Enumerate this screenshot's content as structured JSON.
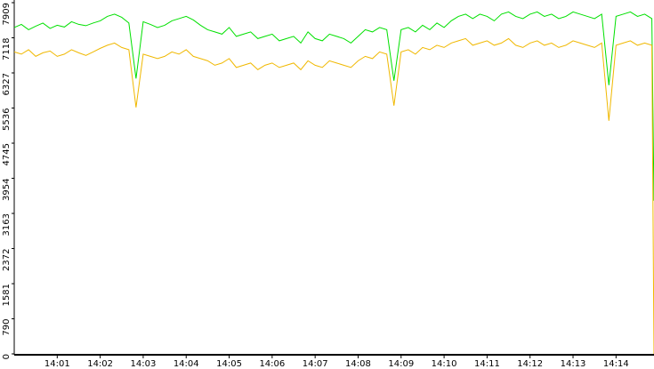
{
  "chart_data": {
    "type": "line",
    "x": [
      0,
      10,
      20,
      30,
      40,
      50,
      60,
      70,
      80,
      90,
      100,
      110,
      120,
      130,
      140,
      150,
      160,
      170,
      180,
      190,
      200,
      210,
      220,
      230,
      240,
      250,
      260,
      270,
      280,
      290,
      300,
      310,
      320,
      330,
      340,
      350,
      360,
      370,
      380,
      390,
      400,
      410,
      420,
      430,
      440,
      450,
      460,
      470,
      480,
      490,
      500,
      510,
      520,
      530,
      540,
      550,
      560,
      570,
      580,
      590,
      600,
      610,
      620,
      630,
      640,
      650,
      660,
      670,
      680,
      690,
      700,
      710,
      720,
      730,
      740,
      750,
      760,
      770,
      780,
      790,
      800,
      810,
      820,
      830,
      840,
      850,
      860,
      870,
      880,
      890,
      893
    ],
    "xlim": [
      0,
      893
    ],
    "xticks": [
      {
        "value": 60,
        "label": "14:01"
      },
      {
        "value": 120,
        "label": "14:02"
      },
      {
        "value": 180,
        "label": "14:03"
      },
      {
        "value": 240,
        "label": "14:04"
      },
      {
        "value": 300,
        "label": "14:05"
      },
      {
        "value": 360,
        "label": "14:06"
      },
      {
        "value": 420,
        "label": "14:07"
      },
      {
        "value": 480,
        "label": "14:08"
      },
      {
        "value": 540,
        "label": "14:09"
      },
      {
        "value": 600,
        "label": "14:10"
      },
      {
        "value": 660,
        "label": "14:11"
      },
      {
        "value": 720,
        "label": "14:12"
      },
      {
        "value": 780,
        "label": "14:13"
      },
      {
        "value": 840,
        "label": "14:14"
      }
    ],
    "ylim": [
      0,
      7909
    ],
    "yticks": [
      0,
      790,
      1581,
      2372,
      3163,
      3954,
      4745,
      5536,
      6327,
      7118,
      7909
    ],
    "series": [
      {
        "color": "#00e000",
        "values": [
          7350,
          7420,
          7300,
          7380,
          7450,
          7330,
          7400,
          7360,
          7480,
          7420,
          7390,
          7450,
          7500,
          7600,
          7650,
          7580,
          7450,
          6200,
          7480,
          7420,
          7350,
          7400,
          7500,
          7550,
          7600,
          7520,
          7400,
          7300,
          7250,
          7200,
          7350,
          7150,
          7200,
          7250,
          7100,
          7150,
          7200,
          7050,
          7100,
          7150,
          7000,
          7250,
          7100,
          7050,
          7200,
          7150,
          7100,
          7000,
          7150,
          7300,
          7250,
          7350,
          7300,
          6150,
          7300,
          7350,
          7250,
          7400,
          7300,
          7450,
          7350,
          7500,
          7600,
          7650,
          7550,
          7650,
          7600,
          7500,
          7650,
          7700,
          7600,
          7550,
          7650,
          7700,
          7600,
          7650,
          7550,
          7600,
          7700,
          7650,
          7600,
          7550,
          7650,
          6050,
          7600,
          7650,
          7700,
          7600,
          7650,
          7550,
          3450
        ]
      },
      {
        "color": "#f0b800",
        "values": [
          6800,
          6750,
          6850,
          6700,
          6780,
          6820,
          6700,
          6750,
          6850,
          6780,
          6720,
          6800,
          6880,
          6950,
          7000,
          6900,
          6850,
          5550,
          6750,
          6700,
          6650,
          6700,
          6800,
          6750,
          6850,
          6700,
          6650,
          6600,
          6500,
          6550,
          6650,
          6450,
          6500,
          6550,
          6400,
          6500,
          6550,
          6450,
          6500,
          6550,
          6400,
          6600,
          6500,
          6450,
          6600,
          6550,
          6500,
          6450,
          6600,
          6700,
          6650,
          6800,
          6750,
          5590,
          6800,
          6850,
          6750,
          6900,
          6850,
          6950,
          6900,
          7000,
          7050,
          7100,
          6950,
          7000,
          7050,
          6950,
          7000,
          7100,
          6950,
          6900,
          7000,
          7050,
          6950,
          7000,
          6900,
          6950,
          7050,
          7000,
          6950,
          6900,
          7000,
          5250,
          6950,
          7000,
          7050,
          6950,
          7000,
          6950,
          0
        ]
      }
    ]
  }
}
